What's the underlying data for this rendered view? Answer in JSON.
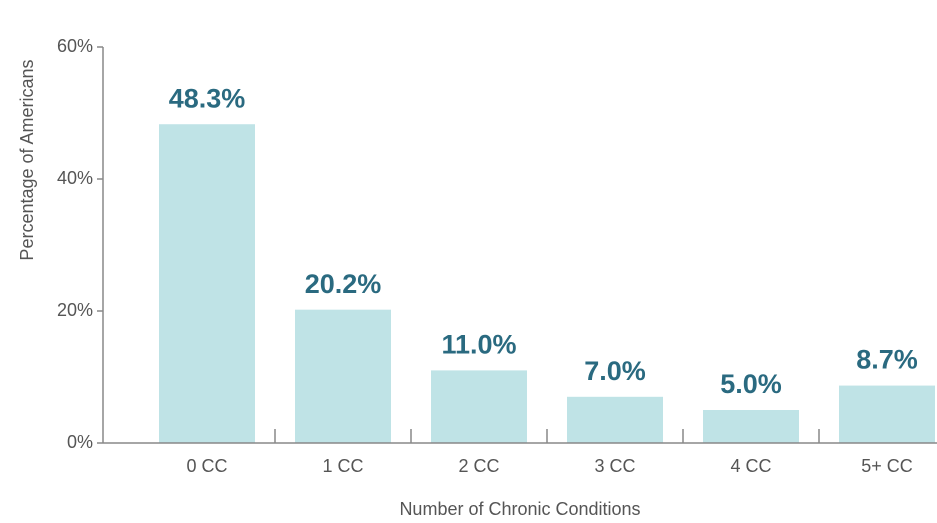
{
  "chart_data": {
    "type": "bar",
    "ylabel": "Percentage of Americans",
    "xlabel": "Number of Chronic Conditions",
    "categories": [
      "0 CC",
      "1 CC",
      "2 CC",
      "3 CC",
      "4 CC",
      "5+ CC"
    ],
    "values": [
      48.3,
      20.2,
      11.0,
      7.0,
      5.0,
      8.7
    ],
    "value_labels": [
      "48.3%",
      "20.2%",
      "11.0%",
      "7.0%",
      "5.0%",
      "8.7%"
    ],
    "color": "#bfe3e6",
    "ylim": [
      0,
      60
    ],
    "yticks": [
      {
        "value": 0,
        "label": "0%"
      },
      {
        "value": 20,
        "label": "20%"
      },
      {
        "value": 40,
        "label": "40%"
      },
      {
        "value": 60,
        "label": "60%"
      }
    ],
    "grid": false
  }
}
